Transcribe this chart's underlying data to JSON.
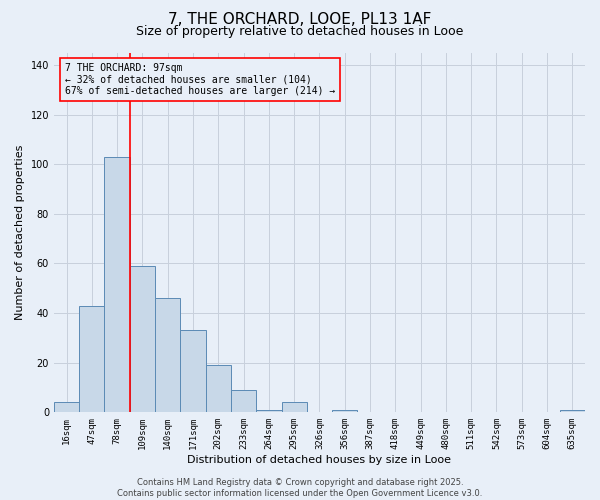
{
  "title": "7, THE ORCHARD, LOOE, PL13 1AF",
  "subtitle": "Size of property relative to detached houses in Looe",
  "xlabel": "Distribution of detached houses by size in Looe",
  "ylabel": "Number of detached properties",
  "categories": [
    "16sqm",
    "47sqm",
    "78sqm",
    "109sqm",
    "140sqm",
    "171sqm",
    "202sqm",
    "233sqm",
    "264sqm",
    "295sqm",
    "326sqm",
    "356sqm",
    "387sqm",
    "418sqm",
    "449sqm",
    "480sqm",
    "511sqm",
    "542sqm",
    "573sqm",
    "604sqm",
    "635sqm"
  ],
  "values": [
    4,
    43,
    103,
    59,
    46,
    33,
    19,
    9,
    1,
    4,
    0,
    1,
    0,
    0,
    0,
    0,
    0,
    0,
    0,
    0,
    1
  ],
  "bar_color": "#c8d8e8",
  "bar_edge_color": "#5b8ab5",
  "vline_color": "red",
  "vline_position": 2.5,
  "annotation_text": "7 THE ORCHARD: 97sqm\n← 32% of detached houses are smaller (104)\n67% of semi-detached houses are larger (214) →",
  "ylim": [
    0,
    145
  ],
  "yticks": [
    0,
    20,
    40,
    60,
    80,
    100,
    120,
    140
  ],
  "footer_text": "Contains HM Land Registry data © Crown copyright and database right 2025.\nContains public sector information licensed under the Open Government Licence v3.0.",
  "bg_color": "#e8eff8",
  "grid_color": "#c8d0dc",
  "title_fontsize": 11,
  "subtitle_fontsize": 9,
  "tick_fontsize": 6.5,
  "ylabel_fontsize": 8,
  "xlabel_fontsize": 8,
  "annotation_fontsize": 7,
  "footer_fontsize": 6
}
